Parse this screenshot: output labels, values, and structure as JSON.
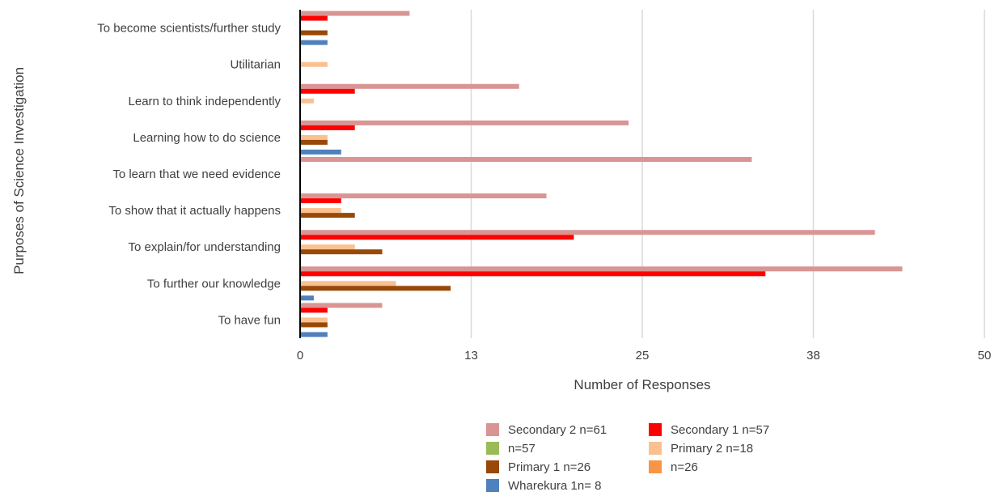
{
  "chart_data": {
    "type": "bar",
    "orientation": "horizontal",
    "ylabel": "Purposes of Science Investigation",
    "xlabel": "Number of Responses",
    "xlim": [
      0,
      50
    ],
    "xticks": [
      "0",
      "13",
      "25",
      "38",
      "50"
    ],
    "grid": true,
    "legend_position": "bottom",
    "categories": [
      "To become scientists/further study",
      "Utilitarian",
      "Learn to think independently",
      "Learning how to do science",
      "To learn that we need evidence",
      "To show that it actually happens",
      "To explain/for understanding",
      "To further our knowledge",
      "To have fun"
    ],
    "series": [
      {
        "name": "Secondary 2 n=61",
        "color": "#d99594",
        "values": [
          8,
          0,
          16,
          24,
          33,
          18,
          42,
          44,
          6
        ]
      },
      {
        "name": "Secondary 1 n=57",
        "color": "#ff0000",
        "values": [
          2,
          0,
          4,
          4,
          0,
          3,
          20,
          34,
          2
        ]
      },
      {
        "name": "n=57",
        "color": "#9bbb59",
        "values": [
          0,
          0,
          0,
          0,
          0,
          0,
          0,
          0,
          0
        ]
      },
      {
        "name": "Primary 2 n=18",
        "color": "#fac090",
        "values": [
          0,
          2,
          1,
          2,
          0,
          3,
          4,
          7,
          2
        ]
      },
      {
        "name": "Primary 1 n=26",
        "color": "#984807",
        "values": [
          2,
          0,
          0,
          2,
          0,
          4,
          6,
          11,
          2
        ]
      },
      {
        "name": "n=26",
        "color": "#f79646",
        "values": [
          0,
          0,
          0,
          0,
          0,
          0,
          0,
          0,
          0
        ]
      },
      {
        "name": "Wharekura 1n= 8",
        "color": "#4f81bd",
        "values": [
          2,
          0,
          0,
          3,
          0,
          0,
          0,
          1,
          2
        ]
      }
    ]
  }
}
